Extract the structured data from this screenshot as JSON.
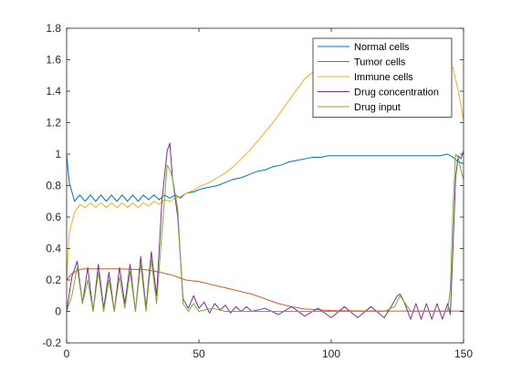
{
  "chart_data": {
    "type": "line",
    "title": "",
    "xlabel": "",
    "ylabel": "",
    "xlim": [
      0,
      150
    ],
    "ylim": [
      -0.2,
      1.8
    ],
    "xticks": [
      0,
      50,
      100,
      150
    ],
    "yticks": [
      -0.2,
      0,
      0.2,
      0.4,
      0.6,
      0.8,
      1,
      1.2,
      1.4,
      1.6,
      1.8
    ],
    "grid": false,
    "legend_position": "top-right",
    "series": [
      {
        "name": "Normal cells",
        "color": "#0072BD",
        "x": [
          0,
          1,
          3,
          5,
          7,
          9,
          11,
          13,
          15,
          17,
          19,
          21,
          23,
          25,
          27,
          29,
          31,
          33,
          35,
          37,
          39,
          41,
          43,
          45,
          48,
          51,
          54,
          57,
          60,
          63,
          66,
          69,
          72,
          75,
          78,
          81,
          84,
          87,
          90,
          93,
          96,
          99,
          102,
          105,
          108,
          111,
          114,
          117,
          120,
          123,
          126,
          129,
          132,
          135,
          138,
          141,
          144,
          146,
          148,
          150
        ],
        "y": [
          1.0,
          0.82,
          0.7,
          0.74,
          0.7,
          0.74,
          0.7,
          0.74,
          0.7,
          0.74,
          0.7,
          0.74,
          0.7,
          0.74,
          0.7,
          0.74,
          0.71,
          0.74,
          0.71,
          0.74,
          0.72,
          0.74,
          0.72,
          0.75,
          0.76,
          0.78,
          0.79,
          0.8,
          0.82,
          0.84,
          0.85,
          0.87,
          0.89,
          0.9,
          0.92,
          0.93,
          0.95,
          0.96,
          0.97,
          0.98,
          0.98,
          0.99,
          0.99,
          0.99,
          0.99,
          0.99,
          0.99,
          0.99,
          0.99,
          0.99,
          0.99,
          0.99,
          0.99,
          0.99,
          0.99,
          0.99,
          1.0,
          0.98,
          0.95,
          0.94
        ]
      },
      {
        "name": "Tumor cells",
        "color": "#D95319",
        "x": [
          0,
          2,
          4,
          6,
          10,
          20,
          30,
          35,
          40,
          45,
          50,
          55,
          60,
          65,
          70,
          75,
          80,
          85,
          90,
          95,
          100,
          110,
          120,
          130,
          140,
          150
        ],
        "y": [
          0.2,
          0.24,
          0.26,
          0.27,
          0.27,
          0.27,
          0.265,
          0.25,
          0.23,
          0.2,
          0.19,
          0.17,
          0.15,
          0.13,
          0.11,
          0.08,
          0.05,
          0.03,
          0.015,
          0.01,
          0.005,
          0.003,
          0.002,
          0.002,
          0.002,
          0.002
        ]
      },
      {
        "name": "Immune cells",
        "color": "#EDB120",
        "x": [
          0,
          1,
          3,
          5,
          7,
          9,
          11,
          13,
          15,
          17,
          19,
          21,
          23,
          25,
          27,
          29,
          31,
          33,
          35,
          37,
          39,
          41,
          43,
          45,
          48,
          51,
          54,
          57,
          60,
          63,
          66,
          69,
          72,
          75,
          78,
          81,
          84,
          87,
          90,
          93,
          96,
          99,
          102,
          105,
          108,
          111,
          114,
          117,
          120,
          123,
          126,
          129,
          132,
          135,
          138,
          141,
          144,
          146,
          148,
          150
        ],
        "y": [
          0.2,
          0.5,
          0.63,
          0.68,
          0.66,
          0.69,
          0.66,
          0.69,
          0.66,
          0.69,
          0.66,
          0.69,
          0.66,
          0.69,
          0.66,
          0.69,
          0.67,
          0.7,
          0.68,
          0.71,
          0.7,
          0.72,
          0.73,
          0.75,
          0.77,
          0.8,
          0.82,
          0.85,
          0.88,
          0.92,
          0.97,
          1.02,
          1.08,
          1.14,
          1.2,
          1.27,
          1.34,
          1.41,
          1.48,
          1.52,
          1.54,
          1.55,
          1.55,
          1.55,
          1.55,
          1.55,
          1.55,
          1.55,
          1.55,
          1.55,
          1.55,
          1.55,
          1.55,
          1.55,
          1.55,
          1.55,
          1.56,
          1.55,
          1.4,
          1.22
        ]
      },
      {
        "name": "Drug concentration",
        "color": "#7E2F8E",
        "x": [
          0,
          2,
          4,
          6,
          8,
          10,
          12,
          14,
          16,
          18,
          20,
          22,
          24,
          26,
          28,
          30,
          32,
          34,
          36,
          38,
          39,
          40,
          42,
          44,
          46,
          48,
          50,
          52,
          54,
          56,
          58,
          60,
          62,
          64,
          66,
          68,
          70,
          75,
          80,
          85,
          90,
          95,
          100,
          105,
          110,
          115,
          120,
          123,
          125,
          126,
          127,
          128,
          130,
          132,
          134,
          136,
          138,
          140,
          142,
          144,
          145,
          146,
          147,
          148,
          149,
          150
        ],
        "y": [
          0.0,
          0.22,
          0.32,
          0.05,
          0.28,
          0.0,
          0.3,
          0.02,
          0.25,
          0.0,
          0.28,
          0.05,
          0.3,
          0.0,
          0.35,
          0.02,
          0.38,
          0.1,
          0.7,
          1.02,
          1.07,
          0.85,
          0.6,
          0.08,
          0.02,
          0.1,
          0.02,
          0.06,
          -0.01,
          0.05,
          0.01,
          0.04,
          -0.01,
          0.03,
          0.0,
          0.03,
          0.0,
          0.02,
          -0.02,
          0.03,
          -0.03,
          0.02,
          -0.04,
          0.03,
          -0.04,
          0.03,
          -0.04,
          0.04,
          0.1,
          0.11,
          0.08,
          0.04,
          -0.05,
          0.05,
          -0.05,
          0.05,
          -0.05,
          0.05,
          -0.05,
          0.05,
          -0.02,
          0.4,
          0.85,
          0.99,
          0.97,
          1.02
        ]
      },
      {
        "name": "Drug input",
        "color": "#77AC30",
        "x": [
          0,
          2,
          4,
          6,
          8,
          10,
          12,
          14,
          16,
          18,
          20,
          22,
          24,
          26,
          28,
          30,
          32,
          34,
          36,
          38,
          39,
          40,
          42,
          44,
          46,
          48,
          50,
          55,
          60,
          70,
          80,
          90,
          100,
          110,
          120,
          124,
          126,
          128,
          130,
          140,
          144,
          145,
          146,
          147,
          148,
          149,
          150
        ],
        "y": [
          0.0,
          0.1,
          0.28,
          0.05,
          0.2,
          0.0,
          0.25,
          0.0,
          0.2,
          0.0,
          0.22,
          0.02,
          0.25,
          0.0,
          0.3,
          0.0,
          0.33,
          0.05,
          0.5,
          0.93,
          0.9,
          0.85,
          0.65,
          0.05,
          0.0,
          0.05,
          0.0,
          0.02,
          0.0,
          0.0,
          0.0,
          0.0,
          0.0,
          0.0,
          0.0,
          0.03,
          0.1,
          0.05,
          0.0,
          0.0,
          0.0,
          0.15,
          0.65,
          1.0,
          0.98,
          0.9,
          0.84
        ]
      }
    ]
  }
}
